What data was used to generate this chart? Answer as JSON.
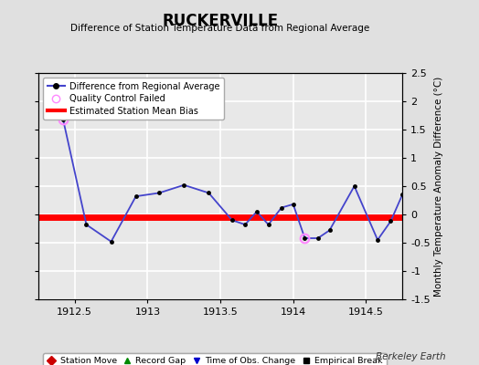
{
  "title": "RUCKERVILLE",
  "subtitle": "Difference of Station Temperature Data from Regional Average",
  "ylabel_right": "Monthly Temperature Anomaly Difference (°C)",
  "xlim": [
    1912.25,
    1914.75
  ],
  "ylim": [
    -1.5,
    2.5
  ],
  "yticks": [
    -1.5,
    -1.0,
    -0.5,
    0.0,
    0.5,
    1.0,
    1.5,
    2.0,
    2.5
  ],
  "xticks": [
    1912.5,
    1913.0,
    1913.5,
    1914.0,
    1914.5
  ],
  "bg_color": "#e0e0e0",
  "plot_bg_color": "#e8e8e8",
  "grid_color": "#ffffff",
  "bias_value": -0.05,
  "line_color": "#4444cc",
  "marker_color": "#000000",
  "qc_fail_color": "#ff88ff",
  "bias_color": "#ff0000",
  "x_data": [
    1912.42,
    1912.58,
    1912.75,
    1912.92,
    1913.08,
    1913.25,
    1913.42,
    1913.58,
    1913.67,
    1913.75,
    1913.83,
    1913.92,
    1914.0,
    1914.08,
    1914.17,
    1914.25,
    1914.42,
    1914.58,
    1914.67,
    1914.75
  ],
  "y_data": [
    1.68,
    -0.18,
    -0.48,
    0.32,
    0.38,
    0.52,
    0.38,
    -0.1,
    -0.18,
    0.05,
    -0.18,
    0.12,
    0.18,
    -0.42,
    -0.42,
    -0.28,
    0.5,
    -0.45,
    -0.12,
    0.35
  ],
  "qc_fail_indices": [
    0,
    13
  ],
  "berkeley_earth_label": "Berkeley Earth",
  "legend1_labels": [
    "Difference from Regional Average",
    "Quality Control Failed",
    "Estimated Station Mean Bias"
  ],
  "legend2_entries": [
    {
      "label": "Station Move",
      "color": "#cc0000",
      "marker": "D"
    },
    {
      "label": "Record Gap",
      "color": "#008800",
      "marker": "^"
    },
    {
      "label": "Time of Obs. Change",
      "color": "#0000cc",
      "marker": "v"
    },
    {
      "label": "Empirical Break",
      "color": "#000000",
      "marker": "s"
    }
  ]
}
